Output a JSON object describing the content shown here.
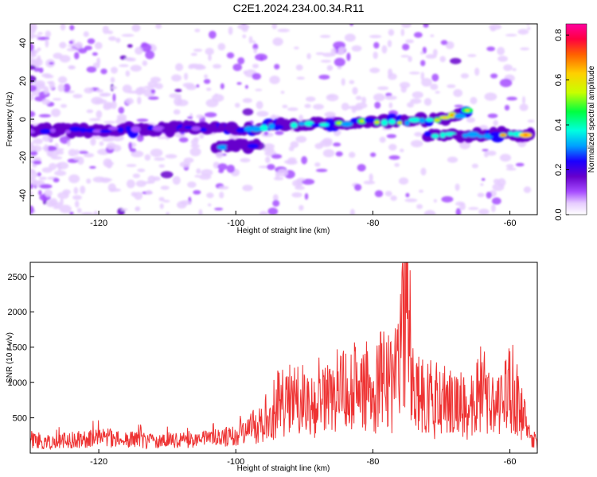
{
  "title": "C2E1.2024.234.00.34.R11",
  "chart_data": [
    {
      "type": "heatmap",
      "xlabel": "Height of straight line (km)",
      "ylabel": "Frequency (Hz)",
      "xlim": [
        -130,
        -56
      ],
      "ylim": [
        -50,
        50
      ],
      "xticks": [
        -120,
        -100,
        -80,
        -60
      ],
      "yticks": [
        -40,
        -20,
        0,
        20,
        40
      ],
      "colorbar": {
        "label": "Normalized spectral amplitude",
        "range": [
          0,
          0.85
        ],
        "ticks": [
          0,
          0.2,
          0.4,
          0.6,
          0.8
        ],
        "tick_labels": [
          "0.0",
          "0.2",
          "0.4",
          "0.6",
          "0.8"
        ],
        "colors": [
          "#ffffff",
          "#e6ccff",
          "#a64dff",
          "#6600cc",
          "#1a00ff",
          "#00a0ff",
          "#00ffe0",
          "#00ff40",
          "#c8ff00",
          "#ffd000",
          "#ff6000",
          "#ff0040",
          "#ff00a0"
        ]
      },
      "ridge_main": {
        "x": [
          -130,
          -120,
          -110,
          -100,
          -95,
          -90,
          -85,
          -80,
          -75,
          -70,
          -66
        ],
        "y": [
          -6,
          -6,
          -5,
          -5,
          -4,
          -3,
          -2,
          -1,
          -1,
          0,
          4
        ]
      },
      "ridge_branch": {
        "x": [
          -72,
          -68,
          -64,
          -60,
          -57
        ],
        "y": [
          -8,
          -8,
          -8,
          -8,
          -8
        ]
      }
    },
    {
      "type": "line",
      "xlabel": "Height of straight line (km)",
      "ylabel": "SNR (10 * v/v)",
      "xlim": [
        -130,
        -56
      ],
      "ylim": [
        0,
        2700
      ],
      "xticks": [
        -120,
        -100,
        -80,
        -60
      ],
      "yticks": [
        500,
        1000,
        1500,
        2000,
        2500
      ],
      "series": [
        {
          "color": "#ee3333",
          "x": [
            -130,
            -128,
            -126,
            -124,
            -122,
            -120,
            -118,
            -116,
            -114,
            -112,
            -110,
            -108,
            -106,
            -104,
            -102,
            -100,
            -98,
            -96,
            -95,
            -94,
            -93,
            -92,
            -91,
            -90,
            -89,
            -88,
            -87,
            -86,
            -85,
            -84,
            -83,
            -82,
            -81,
            -80,
            -79,
            -78,
            -77,
            -76,
            -75.5,
            -75,
            -74.5,
            -74,
            -73,
            -72,
            -71,
            -70,
            -69,
            -68,
            -67,
            -66,
            -65,
            -64,
            -63,
            -62,
            -61,
            -60,
            -59,
            -58,
            -57,
            -56
          ],
          "y": [
            250,
            230,
            250,
            270,
            290,
            300,
            320,
            280,
            260,
            250,
            270,
            260,
            300,
            280,
            320,
            350,
            400,
            500,
            700,
            800,
            850,
            780,
            900,
            880,
            760,
            950,
            1000,
            850,
            1050,
            1000,
            1200,
            900,
            1100,
            1000,
            1200,
            1350,
            1000,
            1800,
            2500,
            2600,
            1900,
            1100,
            900,
            1000,
            800,
            900,
            850,
            750,
            800,
            700,
            900,
            1100,
            800,
            700,
            1000,
            1100,
            1000,
            600,
            300,
            250
          ]
        }
      ]
    }
  ]
}
